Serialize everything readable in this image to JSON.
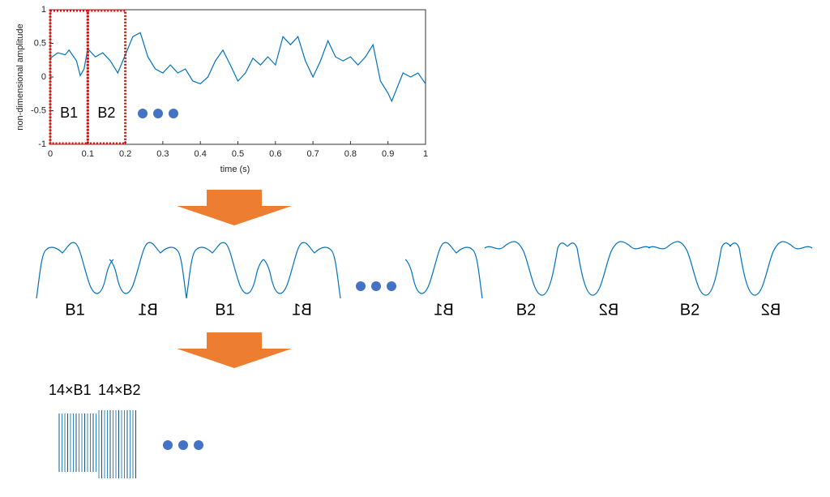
{
  "chart_data": {
    "type": "line",
    "xlabel": "time (s)",
    "ylabel": "non-dimensional amplitude",
    "xlim": [
      0,
      1
    ],
    "ylim": [
      -1,
      1
    ],
    "xticks": [
      0,
      0.1,
      0.2,
      0.3,
      0.4,
      0.5,
      0.6,
      0.7,
      0.8,
      0.9,
      1
    ],
    "yticks": [
      -1,
      -0.5,
      0,
      0.5,
      1
    ],
    "color": "#0072bd",
    "x": [
      0,
      0.02,
      0.04,
      0.05,
      0.07,
      0.08,
      0.09,
      0.1,
      0.12,
      0.14,
      0.16,
      0.18,
      0.2,
      0.22,
      0.24,
      0.26,
      0.28,
      0.3,
      0.32,
      0.34,
      0.36,
      0.38,
      0.4,
      0.42,
      0.44,
      0.46,
      0.48,
      0.5,
      0.52,
      0.54,
      0.56,
      0.58,
      0.6,
      0.62,
      0.64,
      0.66,
      0.68,
      0.7,
      0.72,
      0.74,
      0.76,
      0.78,
      0.8,
      0.82,
      0.84,
      0.86,
      0.88,
      0.9,
      0.91,
      0.94,
      0.96,
      0.98,
      1
    ],
    "y": [
      0.28,
      0.36,
      0.33,
      0.4,
      0.24,
      0.02,
      0.12,
      0.42,
      0.3,
      0.36,
      0.24,
      0.06,
      0.33,
      0.6,
      0.66,
      0.3,
      0.12,
      0.06,
      0.18,
      0.06,
      0.12,
      -0.06,
      -0.1,
      0,
      0.24,
      0.4,
      0.18,
      -0.06,
      0.06,
      0.28,
      0.18,
      0.3,
      0.18,
      0.6,
      0.48,
      0.6,
      0.24,
      0,
      0.24,
      0.54,
      0.3,
      0.24,
      0.3,
      0.18,
      0.3,
      0.48,
      -0.06,
      -0.24,
      -0.36,
      0.06,
      0,
      0.06,
      -0.1
    ],
    "boxes": [
      {
        "label": "B1",
        "xrange": [
          0,
          0.1
        ]
      },
      {
        "label": "B2",
        "xrange": [
          0.1,
          0.2
        ]
      }
    ]
  },
  "segments": [
    {
      "label": "B1",
      "mirrored": false
    },
    {
      "label": "B1",
      "mirrored": true
    },
    {
      "label": "B1",
      "mirrored": false
    },
    {
      "label": "B1",
      "mirrored": true
    },
    {
      "label": "B1",
      "mirrored": true
    },
    {
      "label": "B2",
      "mirrored": false
    },
    {
      "label": "B2",
      "mirrored": true
    },
    {
      "label": "B2",
      "mirrored": false
    },
    {
      "label": "B2",
      "mirrored": true
    }
  ],
  "result": {
    "labels": [
      "14×B1",
      "14×B2"
    ]
  }
}
